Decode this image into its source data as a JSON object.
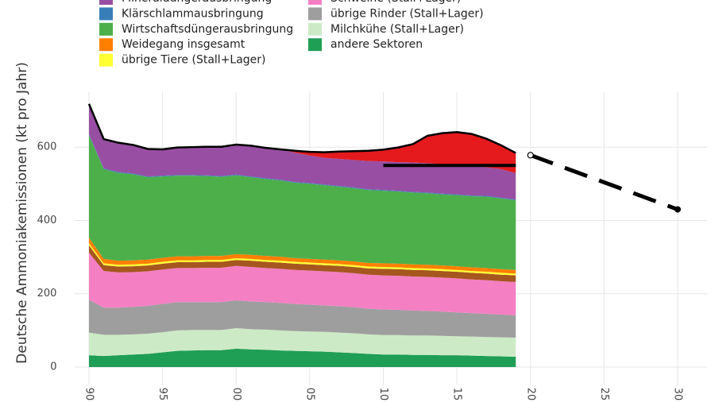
{
  "chart_data": {
    "type": "stacked_area",
    "y_label": "Deutsche Ammoniakemissionen (kt pro Jahr)",
    "x": [
      1990,
      1991,
      1992,
      1993,
      1994,
      1995,
      1996,
      1997,
      1998,
      1999,
      2000,
      2001,
      2002,
      2003,
      2004,
      2005,
      2006,
      2007,
      2008,
      2009,
      2010,
      2011,
      2012,
      2013,
      2014,
      2015,
      2016,
      2017,
      2018,
      2019
    ],
    "xlim": [
      1989,
      2032
    ],
    "xticks": [
      {
        "value": 1990,
        "label": "90"
      },
      {
        "value": 1995,
        "label": "95"
      },
      {
        "value": 2000,
        "label": "00"
      },
      {
        "value": 2005,
        "label": "05"
      },
      {
        "value": 2010,
        "label": "10"
      },
      {
        "value": 2015,
        "label": "15"
      },
      {
        "value": 2020,
        "label": "20"
      },
      {
        "value": 2025,
        "label": "25"
      },
      {
        "value": 2030,
        "label": "30"
      }
    ],
    "ylim": [
      -50,
      750
    ],
    "yticks": [
      0,
      200,
      400,
      600
    ],
    "grid": true,
    "series": [
      {
        "name": "andere Sektoren",
        "color": "#1f9e55",
        "values": [
          32,
          30,
          32,
          34,
          36,
          40,
          44,
          45,
          46,
          46,
          50,
          48,
          47,
          45,
          44,
          43,
          42,
          40,
          38,
          36,
          34,
          34,
          33,
          33,
          32,
          32,
          31,
          30,
          29,
          28
        ]
      },
      {
        "name": "Milchkühe (Stall+Lager)",
        "color": "#cdeac6",
        "values": [
          62,
          58,
          56,
          55,
          55,
          55,
          56,
          56,
          55,
          55,
          56,
          55,
          55,
          55,
          54,
          54,
          54,
          54,
          54,
          53,
          53,
          53,
          53,
          53,
          53,
          52,
          52,
          52,
          52,
          52
        ]
      },
      {
        "name": "übrige Rinder (Stall+Lager)",
        "color": "#9e9e9e",
        "values": [
          90,
          74,
          74,
          75,
          76,
          77,
          77,
          76,
          76,
          76,
          76,
          76,
          75,
          75,
          74,
          73,
          72,
          72,
          71,
          70,
          70,
          69,
          68,
          67,
          66,
          65,
          64,
          63,
          62,
          61
        ]
      },
      {
        "name": "Schweine (Stall+Lager)",
        "color": "#f47fc3",
        "values": [
          128,
          100,
          96,
          95,
          94,
          94,
          93,
          93,
          94,
          94,
          94,
          94,
          93,
          93,
          93,
          93,
          93,
          93,
          93,
          93,
          93,
          93,
          93,
          93,
          93,
          93,
          92,
          92,
          91,
          91
        ]
      },
      {
        "color": "#a6561f",
        "values": [
          20,
          16,
          16,
          16,
          16,
          16,
          16,
          16,
          16,
          16,
          16,
          17,
          17,
          17,
          17,
          17,
          17,
          17,
          17,
          17,
          18,
          18,
          18,
          18,
          18,
          18,
          18,
          18,
          18,
          18
        ]
      },
      {
        "name": "übrige Tiere (Stall+Lager)",
        "color": "#ffff33",
        "values": [
          6,
          5,
          5,
          5,
          5,
          5,
          5,
          5,
          5,
          5,
          5,
          5,
          5,
          5,
          5,
          5,
          5,
          5,
          5,
          5,
          5,
          5,
          5,
          5,
          5,
          5,
          5,
          5,
          5,
          5
        ]
      },
      {
        "name": "Weidegang insgesamt",
        "color": "#ff7f00",
        "values": [
          15,
          12,
          11,
          11,
          11,
          11,
          11,
          11,
          11,
          11,
          11,
          11,
          11,
          11,
          10,
          10,
          10,
          10,
          10,
          10,
          10,
          10,
          10,
          10,
          10,
          10,
          10,
          10,
          10,
          10
        ]
      },
      {
        "name": "Wirtschaftsdüngerausbringung",
        "color": "#4daf4a",
        "values": [
          280,
          245,
          240,
          235,
          225,
          222,
          220,
          220,
          218,
          216,
          215,
          212,
          210,
          208,
          206,
          205,
          203,
          201,
          200,
          199,
          198,
          197,
          196,
          195,
          194,
          194,
          194,
          195,
          193,
          190
        ]
      },
      {
        "name": "Klärschlammausbringung",
        "color": "#377eb8",
        "values": [
          2,
          2,
          2,
          2,
          2,
          2,
          2,
          2,
          2,
          2,
          2,
          2,
          2,
          2,
          2,
          2,
          2,
          2,
          2,
          2,
          2,
          2,
          2,
          2,
          2,
          2,
          2,
          2,
          2,
          2
        ]
      },
      {
        "name": "Mineraldüngerausbringung",
        "color": "#984ea3",
        "values": [
          83,
          80,
          80,
          78,
          75,
          72,
          75,
          76,
          78,
          80,
          82,
          84,
          83,
          83,
          80,
          75,
          73,
          74,
          75,
          77,
          78,
          78,
          80,
          80,
          80,
          80,
          80,
          78,
          78,
          72
        ]
      },
      {
        "color": "#e41a1c",
        "values": [
          0,
          0,
          0,
          0,
          0,
          0,
          0,
          0,
          0,
          0,
          0,
          0,
          0,
          0,
          5,
          10,
          15,
          20,
          24,
          28,
          32,
          40,
          50,
          75,
          85,
          90,
          88,
          78,
          65,
          55
        ]
      }
    ],
    "lines": [
      {
        "x": [
          2010,
          2019
        ],
        "values": [
          550,
          550
        ],
        "color": "#000000",
        "dashed": false
      },
      {
        "x": [
          2020,
          2030
        ],
        "values": [
          578,
          430
        ],
        "color": "#000000",
        "dashed": true
      }
    ]
  }
}
